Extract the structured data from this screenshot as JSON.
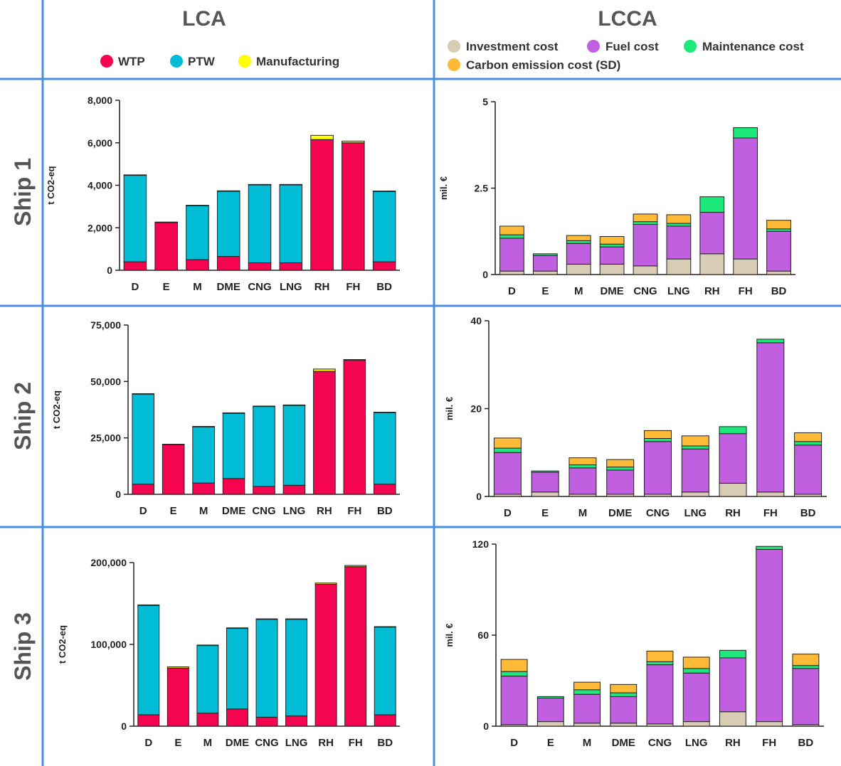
{
  "headers": {
    "lca": "LCA",
    "lcca": "LCCA"
  },
  "rows": [
    "Ship 1",
    "Ship 2",
    "Ship 3"
  ],
  "legend_lca": [
    {
      "label": "WTP",
      "color": "#f5054f"
    },
    {
      "label": "PTW",
      "color": "#00bcd4"
    },
    {
      "label": "Manufacturing",
      "color": "#ffff00"
    }
  ],
  "legend_lcca": [
    {
      "label": "Investment cost",
      "color": "#d8ccb4"
    },
    {
      "label": "Fuel cost",
      "color": "#c060e0"
    },
    {
      "label": "Maintenance cost",
      "color": "#1de87a"
    },
    {
      "label": "Carbon emission cost (SD)",
      "color": "#ffbb38"
    }
  ],
  "chart_data": [
    {
      "type": "bar",
      "stacked": true,
      "panel": "Ship 1 LCA",
      "categories": [
        "D",
        "E",
        "M",
        "DME",
        "CNG",
        "LNG",
        "RH",
        "FH",
        "BD"
      ],
      "ylabel": "t CO2-eq",
      "ylim": [
        0,
        8000
      ],
      "yticks": [
        0,
        2000,
        4000,
        6000,
        8000
      ],
      "ytick_labels": [
        "0",
        "2,000",
        "4,000",
        "6,000",
        "8,000"
      ],
      "series": [
        {
          "name": "WTP",
          "color": "#f5054f",
          "values": [
            400,
            2250,
            500,
            650,
            350,
            350,
            6150,
            6000,
            400
          ]
        },
        {
          "name": "PTW",
          "color": "#00bcd4",
          "values": [
            4080,
            0,
            2550,
            3080,
            3680,
            3680,
            0,
            0,
            3320
          ]
        },
        {
          "name": "Manufacturing",
          "color": "#ffff00",
          "values": [
            10,
            20,
            10,
            10,
            10,
            10,
            200,
            80,
            10
          ]
        }
      ]
    },
    {
      "type": "bar",
      "stacked": true,
      "panel": "Ship 1 LCCA",
      "categories": [
        "D",
        "E",
        "M",
        "DME",
        "CNG",
        "LNG",
        "RH",
        "FH",
        "BD"
      ],
      "ylabel": "mil. €",
      "ylim": [
        0,
        5
      ],
      "yticks": [
        0,
        2.5,
        5
      ],
      "ytick_labels": [
        "0",
        "2.5",
        "5"
      ],
      "series": [
        {
          "name": "Investment cost",
          "color": "#d8ccb4",
          "values": [
            0.1,
            0.1,
            0.3,
            0.3,
            0.25,
            0.45,
            0.6,
            0.45,
            0.1
          ]
        },
        {
          "name": "Fuel cost",
          "color": "#c060e0",
          "values": [
            0.95,
            0.45,
            0.6,
            0.5,
            1.2,
            0.95,
            1.2,
            3.5,
            1.15
          ]
        },
        {
          "name": "Maintenance cost",
          "color": "#1de87a",
          "values": [
            0.1,
            0.05,
            0.08,
            0.08,
            0.08,
            0.08,
            0.45,
            0.3,
            0.07
          ]
        },
        {
          "name": "Carbon emission cost (SD)",
          "color": "#ffbb38",
          "values": [
            0.25,
            0,
            0.15,
            0.22,
            0.22,
            0.25,
            0,
            0,
            0.25
          ]
        }
      ]
    },
    {
      "type": "bar",
      "stacked": true,
      "panel": "Ship 2 LCA",
      "categories": [
        "D",
        "E",
        "M",
        "DME",
        "CNG",
        "LNG",
        "RH",
        "FH",
        "BD"
      ],
      "ylabel": "t CO2-eq",
      "ylim": [
        0,
        75000
      ],
      "yticks": [
        0,
        25000,
        50000,
        75000
      ],
      "ytick_labels": [
        "0",
        "25,000",
        "50,000",
        "75,000"
      ],
      "series": [
        {
          "name": "WTP",
          "color": "#f5054f",
          "values": [
            4500,
            22000,
            5000,
            7000,
            3500,
            4000,
            54500,
            59500,
            4500
          ]
        },
        {
          "name": "PTW",
          "color": "#00bcd4",
          "values": [
            40000,
            0,
            25000,
            29000,
            35500,
            35500,
            0,
            0,
            31800
          ]
        },
        {
          "name": "Manufacturing",
          "color": "#ffff00",
          "values": [
            100,
            200,
            100,
            100,
            100,
            100,
            1000,
            200,
            100
          ]
        }
      ]
    },
    {
      "type": "bar",
      "stacked": true,
      "panel": "Ship 2 LCCA",
      "categories": [
        "D",
        "E",
        "M",
        "DME",
        "CNG",
        "LNG",
        "RH",
        "FH",
        "BD"
      ],
      "ylabel": "mil. €",
      "ylim": [
        0,
        40
      ],
      "yticks": [
        0,
        20,
        40
      ],
      "ytick_labels": [
        "0",
        "20",
        "40"
      ],
      "series": [
        {
          "name": "Investment cost",
          "color": "#d8ccb4",
          "values": [
            0.5,
            1,
            0.5,
            0.5,
            0.5,
            1,
            3,
            1,
            0.5
          ]
        },
        {
          "name": "Fuel cost",
          "color": "#c060e0",
          "values": [
            9.5,
            4.5,
            6,
            5.5,
            12,
            9.8,
            11.3,
            34,
            11.2
          ]
        },
        {
          "name": "Maintenance cost",
          "color": "#1de87a",
          "values": [
            1,
            0.3,
            0.7,
            0.7,
            0.7,
            0.7,
            1.6,
            0.8,
            0.8
          ]
        },
        {
          "name": "Carbon emission cost (SD)",
          "color": "#ffbb38",
          "values": [
            2.3,
            0,
            1.6,
            1.7,
            1.8,
            2.3,
            0,
            0,
            2
          ]
        }
      ]
    },
    {
      "type": "bar",
      "stacked": true,
      "panel": "Ship 3 LCA",
      "categories": [
        "D",
        "E",
        "M",
        "DME",
        "CNG",
        "LNG",
        "RH",
        "FH",
        "BD"
      ],
      "ylabel": "t CO2-eq",
      "ylim": [
        0,
        200000
      ],
      "yticks": [
        0,
        100000,
        200000
      ],
      "ytick_labels": [
        "0",
        "100,000",
        "200,000"
      ],
      "series": [
        {
          "name": "WTP",
          "color": "#f5054f",
          "values": [
            14000,
            71000,
            16000,
            21000,
            11000,
            12500,
            173500,
            195000,
            14000
          ]
        },
        {
          "name": "PTW",
          "color": "#00bcd4",
          "values": [
            134000,
            0,
            83000,
            99000,
            120000,
            118500,
            0,
            0,
            107500
          ]
        },
        {
          "name": "Manufacturing",
          "color": "#ffff00",
          "values": [
            200,
            1500,
            200,
            200,
            200,
            200,
            1500,
            1500,
            200
          ]
        }
      ]
    },
    {
      "type": "bar",
      "stacked": true,
      "panel": "Ship 3 LCCA",
      "categories": [
        "D",
        "E",
        "M",
        "DME",
        "CNG",
        "LNG",
        "RH",
        "FH",
        "BD"
      ],
      "ylabel": "mil. €",
      "ylim": [
        0,
        120
      ],
      "yticks": [
        0,
        60,
        120
      ],
      "ytick_labels": [
        "0",
        "60",
        "120"
      ],
      "series": [
        {
          "name": "Investment cost",
          "color": "#d8ccb4",
          "values": [
            1,
            3,
            2,
            2,
            1.5,
            3,
            9.5,
            3,
            1
          ]
        },
        {
          "name": "Fuel cost",
          "color": "#c060e0",
          "values": [
            32,
            15.5,
            19,
            17.5,
            39,
            32,
            35.5,
            113.5,
            37
          ]
        },
        {
          "name": "Maintenance cost",
          "color": "#1de87a",
          "values": [
            3,
            1,
            3,
            2.5,
            2,
            3,
            5,
            2,
            2
          ]
        },
        {
          "name": "Carbon emission cost (SD)",
          "color": "#ffbb38",
          "values": [
            8,
            0,
            5,
            5.5,
            7,
            7.5,
            0,
            0,
            7.5
          ]
        }
      ]
    }
  ]
}
